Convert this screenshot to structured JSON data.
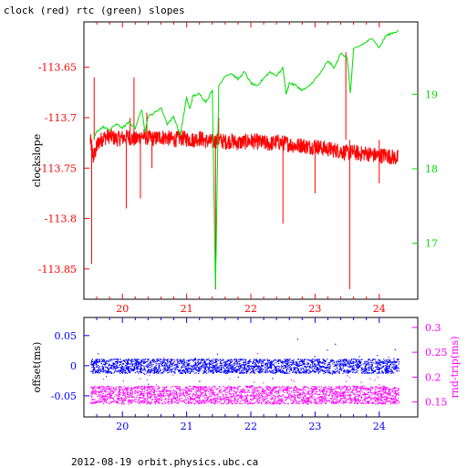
{
  "title": "clock (red) rtc (green) slopes",
  "footer": "2012-08-19  orbit.physics.ubc.ca",
  "colors": {
    "clock": "#ff0000",
    "rtc": "#00dd00",
    "offset": "#0000ff",
    "roundtrip": "#ff00ff",
    "frame": "#000000"
  },
  "chart_data": [
    {
      "type": "line",
      "ylabel": "clockslope",
      "y2label": "",
      "xlim": [
        19.4,
        24.6
      ],
      "ylim": [
        -113.88,
        -113.605
      ],
      "y2lim": [
        16.25,
        19.97
      ],
      "xticks": [
        20,
        21,
        22,
        23,
        24
      ],
      "xtick_labels": [
        "20",
        "21",
        "22",
        "23",
        "24"
      ],
      "yticks": [
        -113.65,
        -113.7,
        -113.75,
        -113.8,
        -113.85
      ],
      "ytick_labels": [
        "-113.65",
        "-113.7",
        "-113.75",
        "-113.8",
        "-113.85"
      ],
      "y2ticks": [
        17,
        18,
        19
      ],
      "y2tick_labels": [
        "17",
        "18",
        "19"
      ],
      "series": [
        {
          "axis": "left",
          "x": [
            19.5,
            19.55,
            19.62,
            19.7,
            19.8,
            19.9,
            20.0,
            20.1,
            20.2,
            20.3,
            20.4,
            20.5,
            20.6,
            20.7,
            20.8,
            20.9,
            21.0,
            21.1,
            21.2,
            21.3,
            21.4,
            21.5,
            21.6,
            21.7,
            21.8,
            21.9,
            22.0,
            22.1,
            22.2,
            22.3,
            22.4,
            22.5,
            22.6,
            22.7,
            22.8,
            22.9,
            23.0,
            23.1,
            23.2,
            23.3,
            23.4,
            23.5,
            23.6,
            23.7,
            23.8,
            23.9,
            24.0,
            24.1,
            24.2,
            24.3
          ],
          "y": [
            -113.722,
            -113.74,
            -113.725,
            -113.72,
            -113.718,
            -113.721,
            -113.72,
            -113.719,
            -113.722,
            -113.718,
            -113.72,
            -113.721,
            -113.719,
            -113.72,
            -113.722,
            -113.72,
            -113.721,
            -113.722,
            -113.72,
            -113.723,
            -113.724,
            -113.722,
            -113.724,
            -113.723,
            -113.725,
            -113.724,
            -113.723,
            -113.724,
            -113.725,
            -113.726,
            -113.724,
            -113.725,
            -113.726,
            -113.728,
            -113.727,
            -113.729,
            -113.728,
            -113.73,
            -113.731,
            -113.732,
            -113.733,
            -113.735,
            -113.734,
            -113.736,
            -113.735,
            -113.737,
            -113.738,
            -113.737,
            -113.739,
            -113.74
          ],
          "spikes": [
            {
              "x": 19.52,
              "y": -113.845
            },
            {
              "x": 19.56,
              "y": -113.66
            },
            {
              "x": 20.06,
              "y": -113.79
            },
            {
              "x": 20.12,
              "y": -113.7
            },
            {
              "x": 20.18,
              "y": -113.66
            },
            {
              "x": 20.28,
              "y": -113.78
            },
            {
              "x": 20.38,
              "y": -113.695
            },
            {
              "x": 20.46,
              "y": -113.75
            },
            {
              "x": 21.45,
              "y": -113.87
            },
            {
              "x": 21.5,
              "y": -113.7
            },
            {
              "x": 22.5,
              "y": -113.805
            },
            {
              "x": 23.0,
              "y": -113.775
            },
            {
              "x": 23.48,
              "y": -113.635
            },
            {
              "x": 23.54,
              "y": -113.87
            },
            {
              "x": 24.0,
              "y": -113.765
            }
          ]
        },
        {
          "axis": "right",
          "x": [
            19.55,
            19.6,
            19.7,
            19.8,
            19.9,
            20.0,
            20.1,
            20.2,
            20.3,
            20.35,
            20.4,
            20.5,
            20.6,
            20.7,
            20.8,
            20.9,
            21.0,
            21.05,
            21.1,
            21.2,
            21.3,
            21.4,
            21.45,
            21.5,
            21.6,
            21.7,
            21.8,
            21.9,
            22.0,
            22.1,
            22.2,
            22.3,
            22.4,
            22.5,
            22.55,
            22.6,
            22.7,
            22.8,
            22.9,
            23.0,
            23.1,
            23.2,
            23.3,
            23.4,
            23.5,
            23.55,
            23.6,
            23.7,
            23.8,
            23.9,
            24.0,
            24.1,
            24.2,
            24.3
          ],
          "y": [
            18.4,
            18.5,
            18.56,
            18.52,
            18.6,
            18.55,
            18.62,
            18.55,
            18.8,
            18.5,
            18.7,
            18.75,
            18.82,
            18.6,
            18.7,
            18.45,
            18.95,
            18.8,
            18.98,
            19.0,
            18.9,
            19.05,
            16.4,
            19.1,
            19.25,
            19.28,
            19.2,
            19.3,
            19.15,
            19.1,
            19.22,
            19.3,
            19.25,
            19.35,
            19.0,
            19.15,
            19.12,
            19.05,
            19.1,
            19.2,
            19.3,
            19.45,
            19.35,
            19.55,
            19.5,
            19.0,
            19.6,
            19.65,
            19.7,
            19.75,
            19.62,
            19.78,
            19.82,
            19.85
          ]
        }
      ]
    },
    {
      "type": "scatter",
      "ylabel": "offset(ms)",
      "y2label": "rnd-trip(ms)",
      "xlim": [
        19.4,
        24.6
      ],
      "ylim": [
        -0.085,
        0.08
      ],
      "y2lim": [
        0.12,
        0.32
      ],
      "xticks": [
        20,
        21,
        22,
        23,
        24
      ],
      "xtick_labels": [
        "20",
        "21",
        "22",
        "23",
        "24"
      ],
      "yticks": [
        0.05,
        0,
        -0.05
      ],
      "ytick_labels": [
        "0.05",
        "0",
        "-0.05"
      ],
      "y2ticks": [
        0.3,
        0.25,
        0.2,
        0.15
      ],
      "y2tick_labels": [
        "0.3",
        "0.25",
        "0.2",
        "0.15"
      ],
      "series": [
        {
          "axis": "left",
          "x_range": [
            19.5,
            24.3
          ],
          "center": 0.0,
          "spread": 0.012
        },
        {
          "axis": "right",
          "x_range": [
            19.5,
            24.3
          ],
          "center": 0.165,
          "spread": 0.018
        }
      ]
    }
  ]
}
